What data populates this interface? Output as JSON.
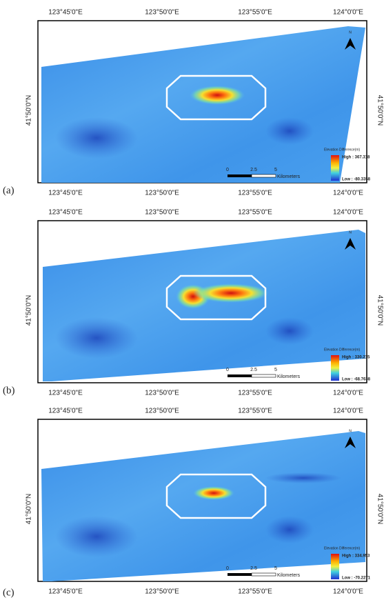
{
  "panels": [
    {
      "label": "(a)",
      "lon_labels": [
        "123°45'0\"E",
        "123°50'0\"E",
        "123°55'0\"E",
        "124°0'0\"E"
      ],
      "lat_label": "41°50'0\"N",
      "north": "N",
      "legend": {
        "title": "Elevation Difference(m)",
        "high": "High : 367.318",
        "low": "Low : -80.3358"
      },
      "scale": {
        "ticks": [
          "0",
          "2.5",
          "5"
        ],
        "unit": "Kilometers"
      }
    },
    {
      "label": "(b)",
      "lon_labels": [
        "123°45'0\"E",
        "123°50'0\"E",
        "123°55'0\"E",
        "124°0'0\"E"
      ],
      "lat_label": "41°50'0\"N",
      "north": "N",
      "legend": {
        "title": "Elevation Difference(m)",
        "high": "High : 330.215",
        "low": "Low : -68.7638"
      },
      "scale": {
        "ticks": [
          "0",
          "2.5",
          "5"
        ],
        "unit": "Kilometers"
      }
    },
    {
      "label": "(c)",
      "lon_labels": [
        "123°45'0\"E",
        "123°50'0\"E",
        "123°55'0\"E",
        "124°0'0\"E"
      ],
      "lat_label": "41°50'0\"N",
      "north": "N",
      "legend": {
        "title": "Elevation Difference(m)",
        "high": "High : 334.953",
        "low": "Low : -70.2271"
      },
      "scale": {
        "ticks": [
          "0",
          "2.5",
          "5"
        ],
        "unit": "Kilometers"
      }
    }
  ]
}
